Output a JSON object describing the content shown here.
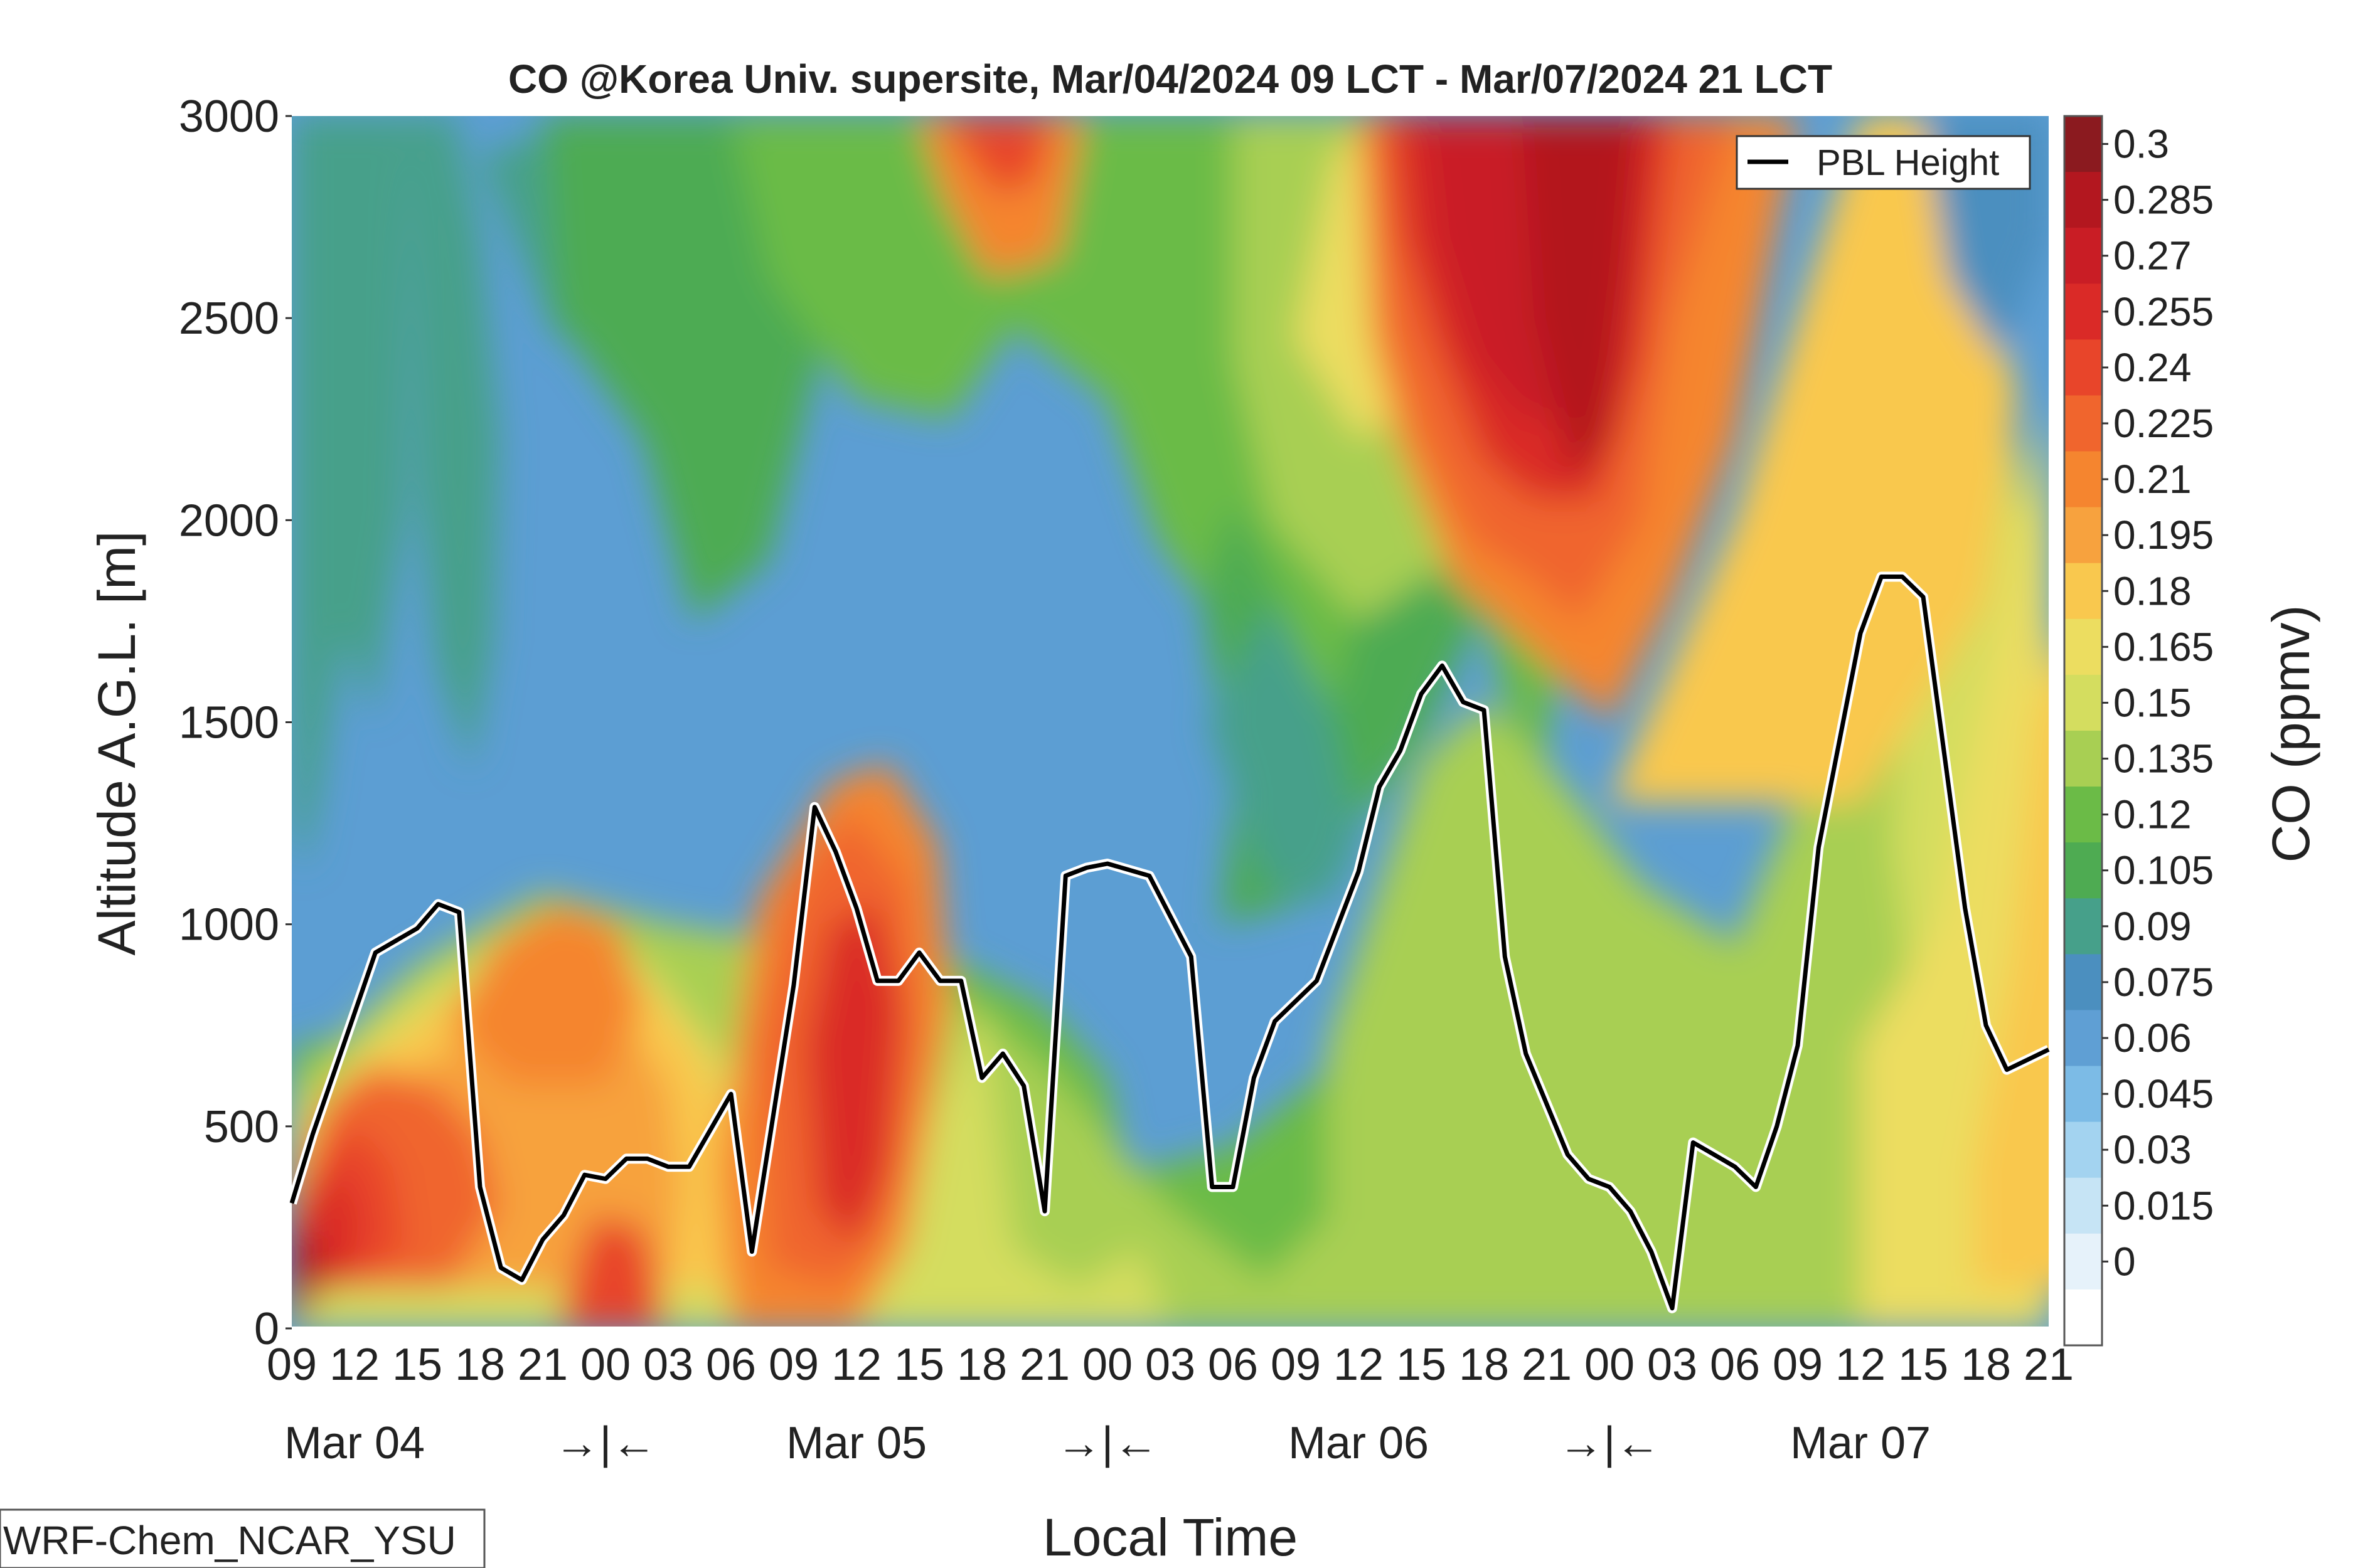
{
  "chart_data": {
    "type": "heatmap",
    "title": "CO @Korea Univ. supersite, Mar/04/2024 09 LCT - Mar/07/2024 21 LCT",
    "xlabel": "Local Time",
    "ylabel": "Altitude A.G.L. [m]",
    "colorbar_label": "CO (ppmv)",
    "ylim": [
      0,
      3000
    ],
    "yticks": [
      "0",
      "500",
      "1000",
      "1500",
      "2000",
      "2500",
      "3000"
    ],
    "xticks": [
      "09",
      "12",
      "15",
      "18",
      "21",
      "00",
      "03",
      "06",
      "09",
      "12",
      "15",
      "18",
      "21",
      "00",
      "03",
      "06",
      "09",
      "12",
      "15",
      "18",
      "21",
      "00",
      "03",
      "06",
      "09",
      "12",
      "15",
      "18",
      "21"
    ],
    "day_labels": [
      "Mar 04",
      "Mar 05",
      "Mar 06",
      "Mar 07"
    ],
    "day_separator": "→|←",
    "colorbar_ticks": [
      "0.3",
      "0.285",
      "0.27",
      "0.255",
      "0.24",
      "0.225",
      "0.21",
      "0.195",
      "0.18",
      "0.165",
      "0.15",
      "0.135",
      "0.12",
      "0.105",
      "0.09",
      "0.075",
      "0.06",
      "0.045",
      "0.03",
      "0.015",
      "0"
    ],
    "colorbar_colors": [
      "#8b1a1f",
      "#b3171f",
      "#c91d25",
      "#da2a27",
      "#e8452a",
      "#f0652d",
      "#f5852f",
      "#f7a23e",
      "#f9c84e",
      "#ecdd60",
      "#d4dd5f",
      "#a8cf53",
      "#6bbb47",
      "#4eab52",
      "#46a08a",
      "#4b8fbf",
      "#5f9fd4",
      "#7cbbe6",
      "#a3d3f0",
      "#c6e4f5",
      "#e6f2fa",
      "#ffffff"
    ],
    "legend": {
      "entries": [
        "PBL Height"
      ],
      "placement": "top-right"
    },
    "pbl_height": [
      {
        "t": "Mar/04 09",
        "z": 310
      },
      {
        "t": "Mar/04 10",
        "z": 480
      },
      {
        "t": "Mar/04 12",
        "z": 780
      },
      {
        "t": "Mar/04 13",
        "z": 930
      },
      {
        "t": "Mar/04 15",
        "z": 990
      },
      {
        "t": "Mar/04 16",
        "z": 1050
      },
      {
        "t": "Mar/04 17",
        "z": 1030
      },
      {
        "t": "Mar/04 18",
        "z": 350
      },
      {
        "t": "Mar/04 19",
        "z": 150
      },
      {
        "t": "Mar/04 20",
        "z": 120
      },
      {
        "t": "Mar/04 21",
        "z": 220
      },
      {
        "t": "Mar/04 22",
        "z": 280
      },
      {
        "t": "Mar/04 23",
        "z": 380
      },
      {
        "t": "Mar/05 00",
        "z": 370
      },
      {
        "t": "Mar/05 01",
        "z": 420
      },
      {
        "t": "Mar/05 02",
        "z": 420
      },
      {
        "t": "Mar/05 03",
        "z": 400
      },
      {
        "t": "Mar/05 04",
        "z": 400
      },
      {
        "t": "Mar/05 06",
        "z": 580
      },
      {
        "t": "Mar/05 07",
        "z": 190
      },
      {
        "t": "Mar/05 09",
        "z": 850
      },
      {
        "t": "Mar/05 10",
        "z": 1290
      },
      {
        "t": "Mar/05 11",
        "z": 1180
      },
      {
        "t": "Mar/05 12",
        "z": 1040
      },
      {
        "t": "Mar/05 13",
        "z": 860
      },
      {
        "t": "Mar/05 14",
        "z": 860
      },
      {
        "t": "Mar/05 15",
        "z": 930
      },
      {
        "t": "Mar/05 16",
        "z": 860
      },
      {
        "t": "Mar/05 17",
        "z": 860
      },
      {
        "t": "Mar/05 18",
        "z": 620
      },
      {
        "t": "Mar/05 19",
        "z": 680
      },
      {
        "t": "Mar/05 20",
        "z": 600
      },
      {
        "t": "Mar/05 21",
        "z": 290
      },
      {
        "t": "Mar/05 22",
        "z": 1120
      },
      {
        "t": "Mar/05 23",
        "z": 1140
      },
      {
        "t": "Mar/06 00",
        "z": 1150
      },
      {
        "t": "Mar/06 02",
        "z": 1120
      },
      {
        "t": "Mar/06 04",
        "z": 920
      },
      {
        "t": "Mar/06 05",
        "z": 350
      },
      {
        "t": "Mar/06 06",
        "z": 350
      },
      {
        "t": "Mar/06 07",
        "z": 620
      },
      {
        "t": "Mar/06 08",
        "z": 760
      },
      {
        "t": "Mar/06 10",
        "z": 860
      },
      {
        "t": "Mar/06 12",
        "z": 1130
      },
      {
        "t": "Mar/06 13",
        "z": 1340
      },
      {
        "t": "Mar/06 14",
        "z": 1430
      },
      {
        "t": "Mar/06 15",
        "z": 1570
      },
      {
        "t": "Mar/06 16",
        "z": 1640
      },
      {
        "t": "Mar/06 17",
        "z": 1550
      },
      {
        "t": "Mar/06 18",
        "z": 1530
      },
      {
        "t": "Mar/06 19",
        "z": 920
      },
      {
        "t": "Mar/06 20",
        "z": 680
      },
      {
        "t": "Mar/06 22",
        "z": 430
      },
      {
        "t": "Mar/06 23",
        "z": 370
      },
      {
        "t": "Mar/07 00",
        "z": 350
      },
      {
        "t": "Mar/07 01",
        "z": 290
      },
      {
        "t": "Mar/07 02",
        "z": 190
      },
      {
        "t": "Mar/07 03",
        "z": 50
      },
      {
        "t": "Mar/07 04",
        "z": 460
      },
      {
        "t": "Mar/07 05",
        "z": 430
      },
      {
        "t": "Mar/07 06",
        "z": 400
      },
      {
        "t": "Mar/07 07",
        "z": 350
      },
      {
        "t": "Mar/07 08",
        "z": 500
      },
      {
        "t": "Mar/07 09",
        "z": 700
      },
      {
        "t": "Mar/07 10",
        "z": 1190
      },
      {
        "t": "Mar/07 12",
        "z": 1720
      },
      {
        "t": "Mar/07 13",
        "z": 1860
      },
      {
        "t": "Mar/07 14",
        "z": 1860
      },
      {
        "t": "Mar/07 15",
        "z": 1810
      },
      {
        "t": "Mar/07 17",
        "z": 1040
      },
      {
        "t": "Mar/07 18",
        "z": 750
      },
      {
        "t": "Mar/07 19",
        "z": 640
      },
      {
        "t": "Mar/07 21",
        "z": 690
      }
    ],
    "co_regions": [
      {
        "name": "background-upper-left",
        "level": "0.075"
      },
      {
        "name": "mar04-morning-surface-core",
        "level": "0.285"
      },
      {
        "name": "mar04-daytime-mixed-layer",
        "level": "0.195"
      },
      {
        "name": "mar04-night-surface",
        "level": "0.24"
      },
      {
        "name": "mar05-early-morning-plume",
        "level": "0.24"
      },
      {
        "name": "mar05-top-plume",
        "level": "0.21"
      },
      {
        "name": "mar05-evening-clean-column",
        "level": "0.09"
      },
      {
        "name": "mar06-upper-plume",
        "level": "0.285"
      },
      {
        "name": "mar06-daytime-mixed-layer",
        "level": "0.135"
      },
      {
        "name": "mar07-daytime-mixed-layer",
        "level": "0.18"
      }
    ]
  },
  "model_label": "WRF-Chem_NCAR_YSU"
}
